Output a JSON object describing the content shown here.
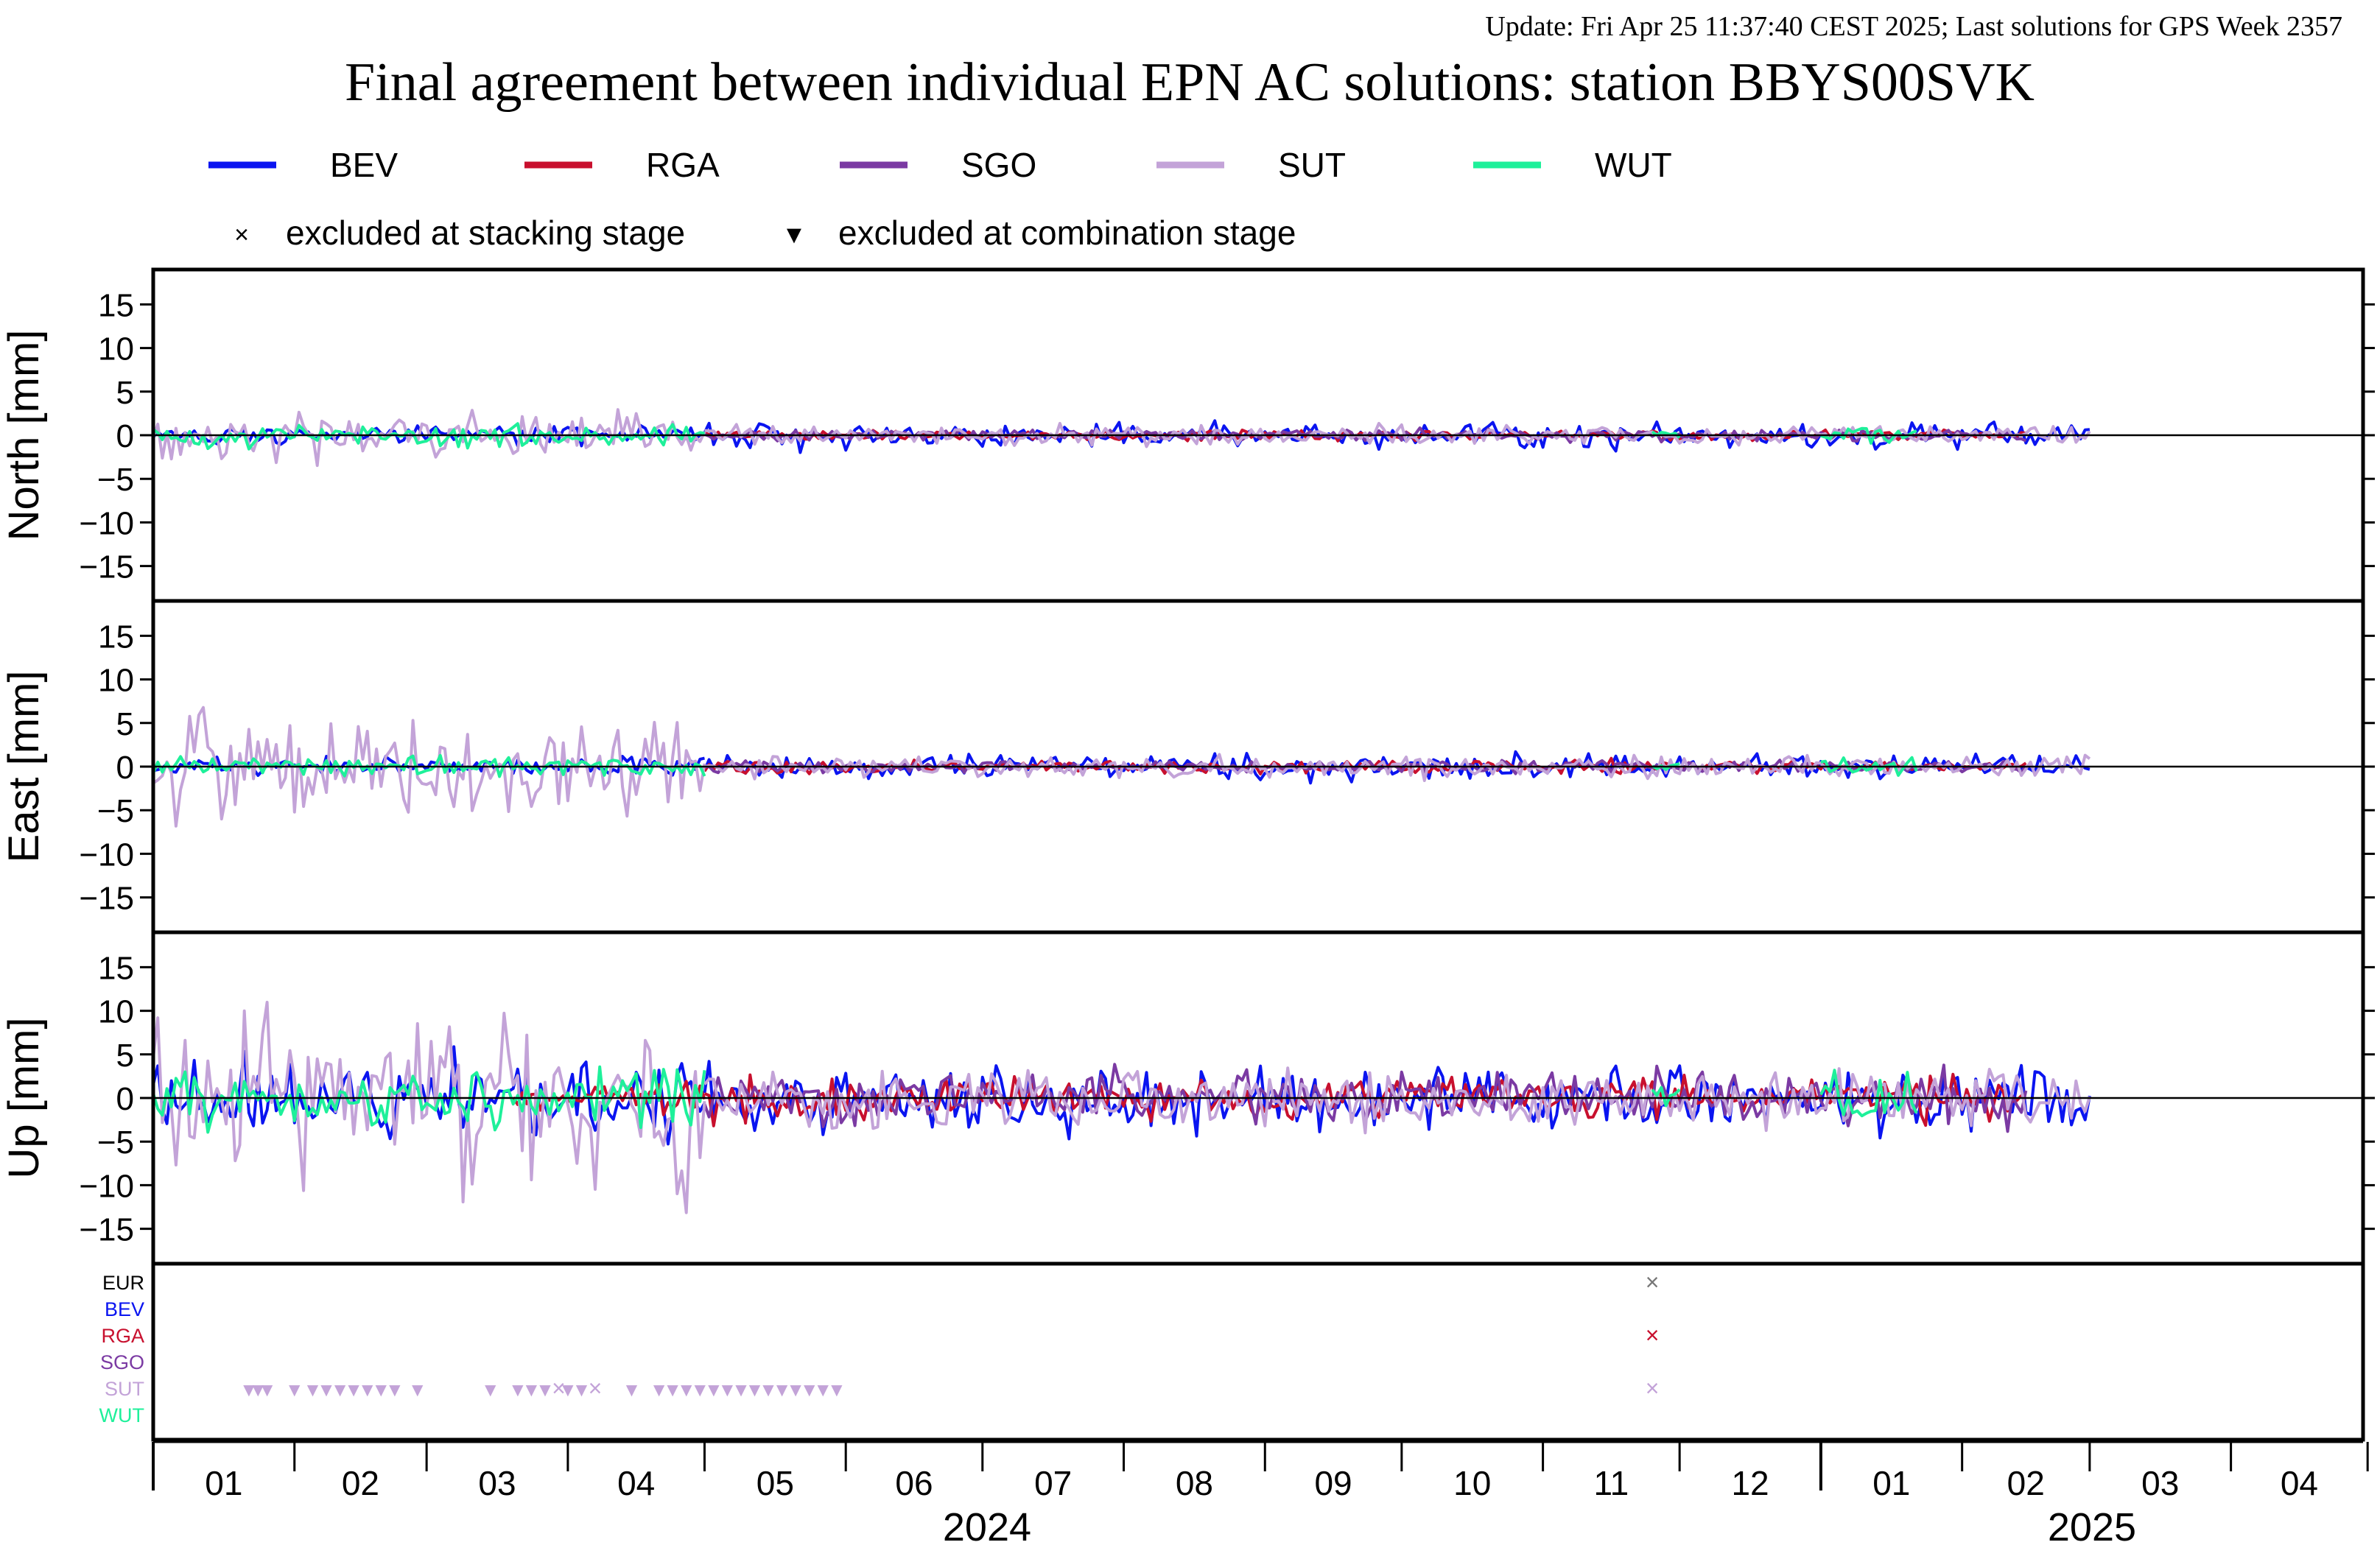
{
  "update_text": "Update: Fri Apr 25 11:37:40 CEST 2025; Last solutions for GPS Week 2357",
  "title": "Final agreement between individual EPN AC solutions: station BBYS00SVK",
  "colors": {
    "BEV": "#0a14f0",
    "RGA": "#c8102e",
    "SGO": "#7b3aa3",
    "SUT": "#c3a3d8",
    "WUT": "#1ef09a",
    "EUR": "#000000",
    "update": "#8b1a1a"
  },
  "legend": {
    "series": [
      "BEV",
      "RGA",
      "SGO",
      "SUT",
      "WUT"
    ],
    "markers": [
      {
        "symbol": "×",
        "label": "excluded at stacking stage"
      },
      {
        "symbol": "▼",
        "label": "excluded at combination stage"
      }
    ]
  },
  "chart_data": {
    "type": "line",
    "x_axis": {
      "range": [
        "2024-01-01",
        "2025-04-30"
      ],
      "months": [
        "01",
        "02",
        "03",
        "04",
        "05",
        "06",
        "07",
        "08",
        "09",
        "10",
        "11",
        "12",
        "01",
        "02",
        "03",
        "04"
      ],
      "years": [
        "2024",
        "2025"
      ]
    },
    "panels": [
      {
        "ylabel": "North [mm]",
        "ylim": [
          -19,
          19
        ],
        "yticks": [
          "15",
          "10",
          "5",
          "0",
          "-5",
          "-10",
          "-15"
        ],
        "series": [
          {
            "name": "BEV",
            "segments": [
              {
                "t": [
                  "2024-01-01",
                  "2024-05-01"
                ],
                "amp": 0.5
              },
              {
                "t": [
                  "2024-05-01",
                  "2025-03-01"
                ],
                "amp": 0.7
              }
            ]
          },
          {
            "name": "RGA",
            "segments": [
              {
                "t": [
                  "2024-05-01",
                  "2025-02-15"
                ],
                "amp": 0.3
              }
            ]
          },
          {
            "name": "SGO",
            "segments": [
              {
                "t": [
                  "2024-05-01",
                  "2025-02-15"
                ],
                "amp": 0.3
              }
            ]
          },
          {
            "name": "SUT",
            "segments": [
              {
                "t": [
                  "2024-01-01",
                  "2024-05-01"
                ],
                "amp": 1.2
              },
              {
                "t": [
                  "2024-05-01",
                  "2025-03-01"
                ],
                "amp": 0.5
              }
            ]
          },
          {
            "name": "WUT",
            "segments": [
              {
                "t": [
                  "2024-01-01",
                  "2024-05-01"
                ],
                "amp": 0.6
              },
              {
                "t": [
                  "2024-11-25",
                  "2024-12-01"
                ],
                "amp": 0.3
              },
              {
                "t": [
                  "2025-01-01",
                  "2025-01-22"
                ],
                "amp": 0.5
              }
            ]
          }
        ]
      },
      {
        "ylabel": "East [mm]",
        "ylim": [
          -19,
          19
        ],
        "yticks": [
          "15",
          "10",
          "5",
          "0",
          "-5",
          "-10",
          "-15"
        ],
        "series": [
          {
            "name": "BEV",
            "segments": [
              {
                "t": [
                  "2024-01-01",
                  "2024-05-01"
                ],
                "amp": 0.5
              },
              {
                "t": [
                  "2024-05-01",
                  "2025-03-01"
                ],
                "amp": 0.7
              }
            ]
          },
          {
            "name": "RGA",
            "segments": [
              {
                "t": [
                  "2024-05-01",
                  "2025-02-15"
                ],
                "amp": 0.35
              }
            ]
          },
          {
            "name": "SGO",
            "segments": [
              {
                "t": [
                  "2024-05-01",
                  "2025-02-15"
                ],
                "amp": 0.3
              }
            ]
          },
          {
            "name": "SUT",
            "segments": [
              {
                "t": [
                  "2024-01-01",
                  "2024-05-01"
                ],
                "amp": 2.8
              },
              {
                "t": [
                  "2024-05-01",
                  "2025-03-01"
                ],
                "amp": 0.6
              }
            ]
          },
          {
            "name": "WUT",
            "segments": [
              {
                "t": [
                  "2024-01-01",
                  "2024-05-01"
                ],
                "amp": 0.6
              },
              {
                "t": [
                  "2024-11-25",
                  "2024-12-01"
                ],
                "amp": 0.3
              },
              {
                "t": [
                  "2025-01-01",
                  "2025-01-22"
                ],
                "amp": 0.5
              }
            ]
          }
        ]
      },
      {
        "ylabel": "Up [mm]",
        "ylim": [
          -19,
          19
        ],
        "yticks": [
          "15",
          "10",
          "5",
          "0",
          "-5",
          "-10",
          "-15"
        ],
        "series": [
          {
            "name": "BEV",
            "segments": [
              {
                "t": [
                  "2024-01-01",
                  "2024-05-01"
                ],
                "amp": 2.2
              },
              {
                "t": [
                  "2024-05-01",
                  "2025-03-01"
                ],
                "amp": 1.8
              }
            ]
          },
          {
            "name": "RGA",
            "segments": [
              {
                "t": [
                  "2024-03-20",
                  "2024-05-01"
                ],
                "amp": 0.8
              },
              {
                "t": [
                  "2024-05-01",
                  "2025-02-15"
                ],
                "amp": 1.2
              }
            ]
          },
          {
            "name": "SGO",
            "segments": [
              {
                "t": [
                  "2024-05-01",
                  "2025-02-15"
                ],
                "amp": 1.4
              }
            ]
          },
          {
            "name": "SUT",
            "segments": [
              {
                "t": [
                  "2024-01-01",
                  "2024-05-01"
                ],
                "amp": 5.0
              },
              {
                "t": [
                  "2024-05-01",
                  "2025-03-01"
                ],
                "amp": 1.6
              }
            ]
          },
          {
            "name": "WUT",
            "segments": [
              {
                "t": [
                  "2024-01-01",
                  "2024-05-01"
                ],
                "amp": 1.6
              },
              {
                "t": [
                  "2024-11-25",
                  "2024-12-01"
                ],
                "amp": 0.8
              },
              {
                "t": [
                  "2025-01-01",
                  "2025-01-22"
                ],
                "amp": 1.5
              }
            ]
          }
        ]
      }
    ],
    "exclusion_rows": [
      "EUR",
      "BEV",
      "RGA",
      "SGO",
      "SUT",
      "WUT"
    ],
    "exclusions": [
      {
        "row": "SUT",
        "symbol": "▼",
        "dates": [
          "2024-01-22",
          "2024-01-24",
          "2024-01-26",
          "2024-02-01",
          "2024-02-05",
          "2024-02-08",
          "2024-02-11",
          "2024-02-14",
          "2024-02-17",
          "2024-02-20",
          "2024-02-23",
          "2024-02-28",
          "2024-03-15",
          "2024-03-21",
          "2024-03-24",
          "2024-03-27",
          "2024-04-01",
          "2024-04-04",
          "2024-04-15",
          "2024-04-21",
          "2024-04-24",
          "2024-04-27",
          "2024-04-30",
          "2024-05-03",
          "2024-05-06",
          "2024-05-09",
          "2024-05-12",
          "2024-05-15",
          "2024-05-18",
          "2024-05-21",
          "2024-05-24",
          "2024-05-27",
          "2024-05-30"
        ]
      },
      {
        "row": "SUT",
        "symbol": "×",
        "dates": [
          "2024-03-30",
          "2024-04-07",
          "2024-11-25"
        ]
      },
      {
        "row": "EUR",
        "symbol": "×",
        "dates": [
          "2024-11-25"
        ]
      },
      {
        "row": "RGA",
        "symbol": "×",
        "dates": [
          "2024-11-25"
        ]
      }
    ]
  }
}
